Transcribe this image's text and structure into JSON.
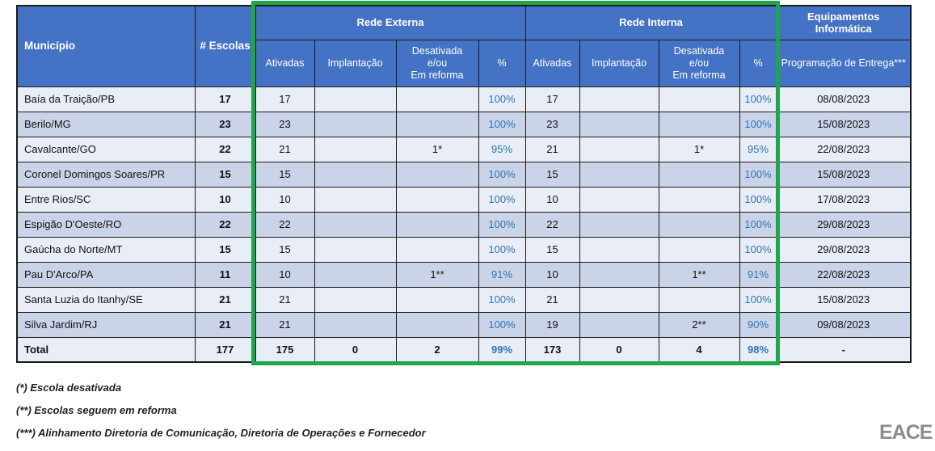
{
  "colors": {
    "header_blue": "#4472C4",
    "highlight_green": "#1FA64C",
    "percent_blue": "#2E75B6",
    "row_light": "#E9EDF6",
    "row_dark": "#CBD3E9",
    "logo_gray": "#8d8d8d"
  },
  "table": {
    "header": {
      "municipio": "Município",
      "escolas": "# Escolas",
      "rede_externa": "Rede Externa",
      "rede_interna": "Rede Interna",
      "equipamentos": "Equipamentos Informática",
      "sub_ativadas": "Ativadas",
      "sub_implantacao": "Implantação",
      "sub_desativada": "Desativada\ne/ou\nEm reforma",
      "sub_pct": "%",
      "sub_entrega": "Programação de Entrega***"
    },
    "rows": [
      {
        "municipio": "Baía da Traição/PB",
        "escolas": "17",
        "ext": [
          "17",
          "",
          "",
          "100%"
        ],
        "int": [
          "17",
          "",
          "",
          "100%"
        ],
        "entrega": "08/08/2023"
      },
      {
        "municipio": "Berilo/MG",
        "escolas": "23",
        "ext": [
          "23",
          "",
          "",
          "100%"
        ],
        "int": [
          "23",
          "",
          "",
          "100%"
        ],
        "entrega": "15/08/2023"
      },
      {
        "municipio": "Cavalcante/GO",
        "escolas": "22",
        "ext": [
          "21",
          "",
          "1*",
          "95%"
        ],
        "int": [
          "21",
          "",
          "1*",
          "95%"
        ],
        "entrega": "22/08/2023"
      },
      {
        "municipio": "Coronel Domingos Soares/PR",
        "escolas": "15",
        "ext": [
          "15",
          "",
          "",
          "100%"
        ],
        "int": [
          "15",
          "",
          "",
          "100%"
        ],
        "entrega": "15/08/2023"
      },
      {
        "municipio": "Entre Rios/SC",
        "escolas": "10",
        "ext": [
          "10",
          "",
          "",
          "100%"
        ],
        "int": [
          "10",
          "",
          "",
          "100%"
        ],
        "entrega": "17/08/2023"
      },
      {
        "municipio": "Espigão D'Oeste/RO",
        "escolas": "22",
        "ext": [
          "22",
          "",
          "",
          "100%"
        ],
        "int": [
          "22",
          "",
          "",
          "100%"
        ],
        "entrega": "29/08/2023"
      },
      {
        "municipio": "Gaúcha do Norte/MT",
        "escolas": "15",
        "ext": [
          "15",
          "",
          "",
          "100%"
        ],
        "int": [
          "15",
          "",
          "",
          "100%"
        ],
        "entrega": "29/08/2023"
      },
      {
        "municipio": "Pau D'Arco/PA",
        "escolas": "11",
        "ext": [
          "10",
          "",
          "1**",
          "91%"
        ],
        "int": [
          "10",
          "",
          "1**",
          "91%"
        ],
        "entrega": "22/08/2023"
      },
      {
        "municipio": "Santa Luzia do Itanhy/SE",
        "escolas": "21",
        "ext": [
          "21",
          "",
          "",
          "100%"
        ],
        "int": [
          "21",
          "",
          "",
          "100%"
        ],
        "entrega": "15/08/2023"
      },
      {
        "municipio": "Silva Jardim/RJ",
        "escolas": "21",
        "ext": [
          "21",
          "",
          "",
          "100%"
        ],
        "int": [
          "19",
          "",
          "2**",
          "90%"
        ],
        "entrega": "09/08/2023"
      }
    ],
    "total": {
      "municipio": "Total",
      "escolas": "177",
      "ext": [
        "175",
        "0",
        "2",
        "99%"
      ],
      "int": [
        "173",
        "0",
        "4",
        "98%"
      ],
      "entrega": "-"
    }
  },
  "footnotes": [
    "(*) Escola desativada",
    "(**) Escolas seguem em reforma",
    "(***) Alinhamento Diretoria de Comunicação, Diretoria de Operações e Fornecedor"
  ],
  "logo": {
    "text": "EACE"
  }
}
